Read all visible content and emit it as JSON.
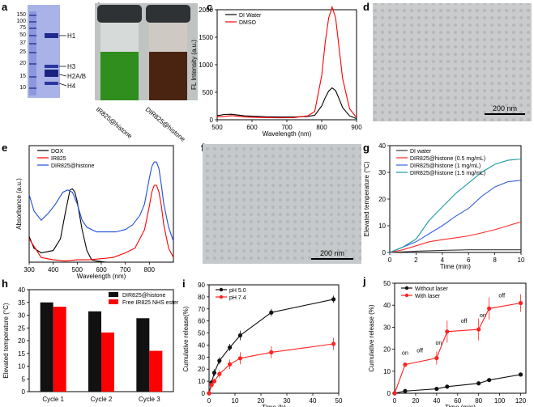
{
  "panels": {
    "a": {
      "letter": "a",
      "ladder": [
        "150",
        "100",
        "75",
        "50",
        "37",
        "25",
        "20",
        "15",
        "10"
      ],
      "bands": [
        "H1",
        "H3",
        "H2A/B",
        "H4"
      ]
    },
    "b": {
      "letter": "b",
      "vials": [
        "IR825@histone",
        "DIR825@histone"
      ]
    },
    "d": {
      "letter": "d",
      "scale": "200 nm"
    },
    "f": {
      "letter": "f",
      "scale": "200 nm"
    }
  },
  "chart_data": [
    {
      "id": "c",
      "type": "line",
      "letter": "c",
      "xlabel": "Wavelength (nm)",
      "ylabel": "FL Intensity (a.u.)",
      "xlim": [
        500,
        900
      ],
      "ylim": [
        0,
        2000
      ],
      "xticks": [
        "500",
        "600",
        "700",
        "800",
        "900"
      ],
      "yticks": [
        "0",
        "500",
        "1000",
        "1500",
        "2000"
      ],
      "legend": "top-left",
      "grid": false,
      "series": [
        {
          "name": "DI Water",
          "color": "#000000",
          "x": [
            500,
            520,
            540,
            560,
            580,
            600,
            640,
            680,
            720,
            760,
            780,
            800,
            810,
            820,
            830,
            840,
            850,
            860,
            880,
            900
          ],
          "y": [
            75,
            95,
            100,
            85,
            70,
            65,
            55,
            50,
            50,
            60,
            80,
            250,
            400,
            520,
            580,
            530,
            380,
            220,
            70,
            20
          ]
        },
        {
          "name": "DMSO",
          "color": "#ff0000",
          "x": [
            500,
            520,
            540,
            560,
            580,
            600,
            640,
            680,
            720,
            760,
            780,
            800,
            810,
            820,
            830,
            840,
            850,
            860,
            880,
            900
          ],
          "y": [
            55,
            60,
            75,
            65,
            50,
            45,
            40,
            35,
            40,
            70,
            150,
            800,
            1400,
            1850,
            2050,
            1850,
            1300,
            750,
            200,
            40
          ]
        }
      ]
    },
    {
      "id": "e",
      "type": "line",
      "letter": "e",
      "xlabel": "Wavelength (nm)",
      "ylabel": "Absorbance (a.u.)",
      "xlim": [
        300,
        900
      ],
      "ylim": [
        0,
        1
      ],
      "xticks": [
        "300",
        "400",
        "500",
        "600",
        "700",
        "800"
      ],
      "yticks": [],
      "legend": "top-left",
      "grid": false,
      "series": [
        {
          "name": "DOX",
          "color": "#000000",
          "x": [
            300,
            320,
            350,
            400,
            430,
            450,
            470,
            480,
            490,
            500,
            520,
            540,
            560,
            580,
            620,
            700,
            800,
            900
          ],
          "y": [
            0.22,
            0.12,
            0.08,
            0.1,
            0.2,
            0.42,
            0.62,
            0.63,
            0.6,
            0.52,
            0.28,
            0.1,
            0.02,
            0.01,
            0.0,
            0.0,
            0.0,
            0.0
          ]
        },
        {
          "name": "IR825",
          "color": "#ff0000",
          "x": [
            300,
            350,
            400,
            450,
            500,
            550,
            600,
            650,
            700,
            740,
            760,
            780,
            800,
            810,
            820,
            830,
            840,
            850,
            860,
            880,
            900
          ],
          "y": [
            0.2,
            0.04,
            0.02,
            0.01,
            0.02,
            0.02,
            0.03,
            0.04,
            0.08,
            0.12,
            0.2,
            0.28,
            0.48,
            0.6,
            0.66,
            0.66,
            0.6,
            0.48,
            0.32,
            0.12,
            0.04
          ]
        },
        {
          "name": "DIR825@histone",
          "color": "#1f4fd8",
          "x": [
            300,
            320,
            350,
            380,
            410,
            440,
            460,
            480,
            500,
            520,
            540,
            560,
            580,
            620,
            660,
            700,
            730,
            760,
            780,
            800,
            810,
            820,
            830,
            840,
            850,
            860,
            880,
            900
          ],
          "y": [
            0.58,
            0.44,
            0.36,
            0.42,
            0.5,
            0.6,
            0.62,
            0.6,
            0.5,
            0.36,
            0.3,
            0.28,
            0.26,
            0.26,
            0.26,
            0.28,
            0.32,
            0.4,
            0.5,
            0.72,
            0.82,
            0.86,
            0.86,
            0.8,
            0.66,
            0.5,
            0.3,
            0.18
          ]
        }
      ]
    },
    {
      "id": "g",
      "type": "line",
      "letter": "g",
      "xlabel": "Time (min)",
      "ylabel": "Elevated temperature (°C)",
      "xlim": [
        0,
        10
      ],
      "ylim": [
        0,
        40
      ],
      "xticks": [
        "0",
        "2",
        "4",
        "6",
        "8",
        "10"
      ],
      "yticks": [
        "0",
        "10",
        "20",
        "30",
        "40"
      ],
      "legend": "top-left",
      "grid": false,
      "series": [
        {
          "name": "DI water",
          "color": "#3a3a3a",
          "x": [
            0,
            2,
            4,
            6,
            8,
            10
          ],
          "y": [
            0,
            0.5,
            0.8,
            1,
            1,
            1
          ]
        },
        {
          "name": "DIR825@histone (0.5 mg/mL)",
          "color": "#ff2a2a",
          "x": [
            0,
            1,
            2,
            3,
            4,
            5,
            6,
            7,
            8,
            9,
            10
          ],
          "y": [
            0,
            1,
            2.5,
            4,
            4.8,
            5.5,
            6.2,
            7.3,
            8.5,
            10,
            11.5
          ]
        },
        {
          "name": "DIR825@histone (1 mg/mL)",
          "color": "#3a5fe0",
          "x": [
            0,
            1,
            2,
            3,
            4,
            5,
            6,
            7,
            8,
            9,
            10
          ],
          "y": [
            0,
            2,
            4,
            7,
            10,
            13.5,
            16.5,
            21,
            24.5,
            26.5,
            27
          ]
        },
        {
          "name": "DIR825@histone (1.5 mg/mL)",
          "color": "#1a9aa0",
          "x": [
            0,
            1,
            2,
            3,
            4,
            5,
            6,
            7,
            8,
            9,
            10
          ],
          "y": [
            0,
            2,
            5,
            12,
            17,
            22,
            26,
            30,
            33,
            34.5,
            35
          ]
        }
      ]
    },
    {
      "id": "h",
      "type": "bar",
      "letter": "h",
      "xlabel": "",
      "ylabel": "Elevated temperature (°C)",
      "ylim": [
        0,
        40
      ],
      "yticks": [
        "0",
        "5",
        "10",
        "15",
        "20",
        "25",
        "30",
        "35",
        "40"
      ],
      "categories": [
        "Cycle 1",
        "Cycle 2",
        "Cycle 3"
      ],
      "legend": "top-right",
      "grid": false,
      "series": [
        {
          "name": "DIR825@histone",
          "color": "#111111",
          "values": [
            35,
            31.5,
            28.8
          ]
        },
        {
          "name": "Free IR825 NHS ester",
          "color": "#ff0000",
          "values": [
            33.3,
            23.2,
            16
          ]
        }
      ]
    },
    {
      "id": "i",
      "type": "line",
      "letter": "i",
      "xlabel": "Time (h)",
      "ylabel": "Cumulative release(%)",
      "xlim": [
        0,
        50
      ],
      "ylim": [
        0,
        90
      ],
      "xticks": [
        "0",
        "10",
        "20",
        "30",
        "40",
        "50"
      ],
      "yticks": [
        "0",
        "10",
        "20",
        "30",
        "40",
        "50",
        "60",
        "70",
        "80",
        "90"
      ],
      "legend": "top-left",
      "grid": false,
      "series": [
        {
          "name": "pH 5.0",
          "color": "#111111",
          "x": [
            0,
            1,
            2,
            4,
            8,
            12,
            24,
            48
          ],
          "y": [
            0,
            9,
            17,
            27,
            38,
            48,
            67,
            78
          ],
          "err": [
            0,
            2,
            3,
            3,
            3,
            4,
            3,
            3
          ]
        },
        {
          "name": "pH 7.4",
          "color": "#ff2222",
          "x": [
            0,
            1,
            2,
            4,
            8,
            12,
            24,
            48
          ],
          "y": [
            0,
            7,
            10,
            16,
            24,
            29,
            34,
            41
          ],
          "err": [
            0,
            2,
            2,
            3,
            4,
            5,
            5,
            5
          ]
        }
      ]
    },
    {
      "id": "j",
      "type": "line",
      "letter": "j",
      "xlabel": "Time (min)",
      "ylabel": "Cumulative release (%)",
      "xlim": [
        0,
        125
      ],
      "ylim": [
        0,
        50
      ],
      "xticks": [
        "0",
        "20",
        "40",
        "60",
        "80",
        "100",
        "120"
      ],
      "yticks": [
        "0",
        "10",
        "20",
        "30",
        "40",
        "50"
      ],
      "legend": "top-left",
      "grid": false,
      "annotations": [
        {
          "text": "on",
          "x": 10,
          "y": 17.5
        },
        {
          "text": "off",
          "x": 24,
          "y": 18.5
        },
        {
          "text": "on",
          "x": 42,
          "y": 22
        },
        {
          "text": "off",
          "x": 66,
          "y": 32
        },
        {
          "text": "on",
          "x": 84,
          "y": 34.5
        },
        {
          "text": "off",
          "x": 102,
          "y": 43.5
        }
      ],
      "series": [
        {
          "name": "Without laser",
          "color": "#111111",
          "x": [
            0,
            10,
            40,
            50,
            80,
            90,
            120
          ],
          "y": [
            0,
            1,
            2,
            3,
            4.5,
            6,
            8.5
          ],
          "err": [
            0,
            0.3,
            0.3,
            0.4,
            0.5,
            0.6,
            0.7
          ]
        },
        {
          "name": "With laser",
          "color": "#ff2222",
          "x": [
            0,
            10,
            40,
            50,
            80,
            90,
            120
          ],
          "y": [
            0,
            13,
            16,
            28,
            29,
            38.5,
            41
          ],
          "err": [
            0,
            1,
            3,
            5,
            5,
            5,
            4
          ]
        }
      ]
    }
  ]
}
